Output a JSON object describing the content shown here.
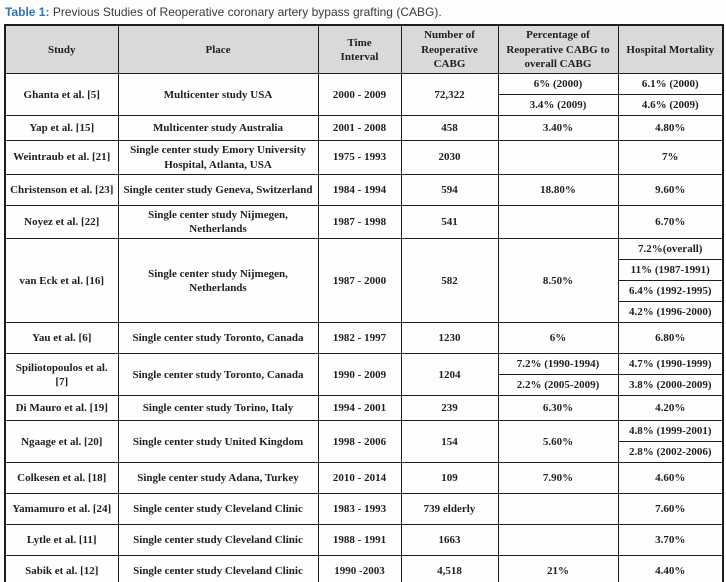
{
  "caption": {
    "label": "Table 1:",
    "text": "Previous Studies of Reoperative coronary artery bypass grafting (CABG)."
  },
  "colors": {
    "caption_accent": "#2e74b5",
    "header_background": "#d8dad8",
    "border": "#1c1c1c",
    "text": "#1f1f1f"
  },
  "table": {
    "headers": [
      "Study",
      "Place",
      "Time Interval",
      "Number of Reoperative CABG",
      "Percentage of Reoperative CABG to overall CABG",
      "Hospital Mortality"
    ],
    "studies": [
      {
        "study": "Ghanta et al. [5]",
        "place": "Multicenter study USA",
        "time": "2000 - 2009",
        "n": "72,322",
        "pct": [
          "6% (2000)",
          "3.4% (2009)"
        ],
        "mort": [
          "6.1% (2000)",
          "4.6% (2009)"
        ]
      },
      {
        "study": "Yap et al. [15]",
        "place": "Multicenter study Australia",
        "time": "2001 - 2008",
        "n": "458",
        "pct": "3.40%",
        "mort": "4.80%"
      },
      {
        "study": "Weintraub et al. [21]",
        "place": "Single center study Emory University Hospital, Atlanta, USA",
        "time": "1975 - 1993",
        "n": "2030",
        "pct": "",
        "mort": "7%"
      },
      {
        "study": "Christenson et al. [23]",
        "place": "Single center study Geneva, Switzerland",
        "time": "1984 - 1994",
        "n": "594",
        "pct": "18.80%",
        "mort": "9.60%"
      },
      {
        "study": "Noyez et al. [22]",
        "place": "Single center study Nijmegen, Netherlands",
        "time": "1987 - 1998",
        "n": "541",
        "pct": "",
        "mort": "6.70%"
      },
      {
        "study": "van Eck et al. [16]",
        "place": "Single center study Nijmegen, Netherlands",
        "time": "1987 - 2000",
        "n": "582",
        "pct": "8.50%",
        "mort": [
          "7.2%(overall)",
          "11% (1987-1991)",
          "6.4% (1992-1995)",
          "4.2% (1996-2000)"
        ]
      },
      {
        "study": "Yau et al. [6]",
        "place": "Single center study Toronto, Canada",
        "time": "1982 - 1997",
        "n": "1230",
        "pct": "6%",
        "mort": "6.80%"
      },
      {
        "study": "Spiliotopoulos et al. [7]",
        "place": "Single center study Toronto, Canada",
        "time": "1990 - 2009",
        "n": "1204",
        "pct": [
          "7.2% (1990-1994)",
          "2.2% (2005-2009)"
        ],
        "mort": [
          "4.7% (1990-1999)",
          "3.8% (2000-2009)"
        ]
      },
      {
        "study": "Di Mauro et al. [19]",
        "place": "Single center study Torino, Italy",
        "time": "1994 - 2001",
        "n": "239",
        "pct": "6.30%",
        "mort": "4.20%"
      },
      {
        "study": "Ngaage et al. [20]",
        "place": "Single center study United Kingdom",
        "time": "1998 - 2006",
        "n": "154",
        "pct": "5.60%",
        "mort": [
          "4.8% (1999-2001)",
          "2.8% (2002-2006)"
        ]
      },
      {
        "study": "Colkesen et al. [18]",
        "place": "Single center study Adana, Turkey",
        "time": "2010 - 2014",
        "n": "109",
        "pct": "7.90%",
        "mort": "4.60%"
      },
      {
        "study": "Yamamuro et al. [24]",
        "place": "Single center study Cleveland Clinic",
        "time": "1983 - 1993",
        "n": "739 elderly",
        "pct": "",
        "mort": "7.60%"
      },
      {
        "study": "Lytle et al. [11]",
        "place": "Single center study Cleveland Clinic",
        "time": "1988 - 1991",
        "n": "1663",
        "pct": "",
        "mort": "3.70%"
      },
      {
        "study": "Sabik et al. [12]",
        "place": "Single center study Cleveland Clinic",
        "time": "1990 -2003",
        "n": "4,518",
        "pct": "21%",
        "mort": "4.40%"
      }
    ]
  }
}
